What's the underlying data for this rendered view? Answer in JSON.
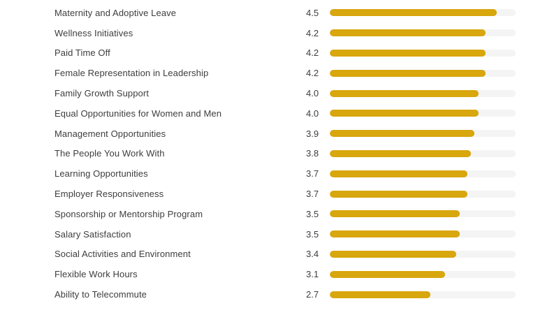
{
  "chart_data": {
    "type": "bar",
    "orientation": "horizontal",
    "categories": [
      "Maternity and Adoptive Leave",
      "Wellness Initiatives",
      "Paid Time Off",
      "Female Representation in Leadership",
      "Family Growth Support",
      "Equal Opportunities for Women and Men",
      "Management Opportunities",
      "The People You Work With",
      "Learning Opportunities",
      "Employer Responsiveness",
      "Sponsorship or Mentorship Program",
      "Salary Satisfaction",
      "Social Activities and Environment",
      "Flexible Work Hours",
      "Ability to Telecommute"
    ],
    "values": [
      4.5,
      4.2,
      4.2,
      4.2,
      4.0,
      4.0,
      3.9,
      3.8,
      3.7,
      3.7,
      3.5,
      3.5,
      3.4,
      3.1,
      2.7
    ],
    "value_labels": [
      "4.5",
      "4.2",
      "4.2",
      "4.2",
      "4.0",
      "4.0",
      "3.9",
      "3.8",
      "3.7",
      "3.7",
      "3.5",
      "3.5",
      "3.4",
      "3.1",
      "2.7"
    ],
    "xlim": [
      0,
      5
    ],
    "grid": false,
    "legend": "none",
    "colors": {
      "bar": "#D8A60D",
      "track": "#F4F4F4",
      "text": "#3D3D3D",
      "background": "#FFFFFF"
    }
  }
}
